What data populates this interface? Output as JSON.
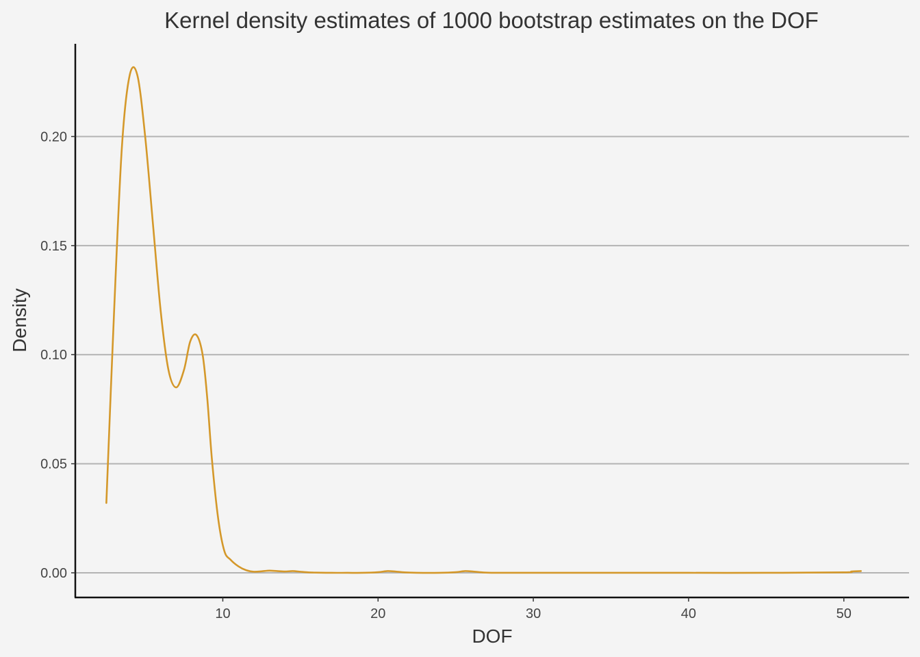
{
  "chart_data": {
    "type": "line",
    "title": "Kernel density estimates of 1000 bootstrap estimates on the DOF",
    "xlabel": "DOF",
    "ylabel": "Density",
    "xlim": [
      0.5,
      54.2
    ],
    "ylim": [
      -0.0113,
      0.2425
    ],
    "x_ticks": [
      10,
      20,
      30,
      40,
      50
    ],
    "x_tick_labels": [
      "10",
      "20",
      "30",
      "40",
      "50"
    ],
    "y_ticks": [
      0.0,
      0.05,
      0.1,
      0.15,
      0.2
    ],
    "y_tick_labels": [
      "0.00",
      "0.05",
      "0.10",
      "0.15",
      "0.20"
    ],
    "grid": "horizontal major",
    "line_color": "#d4982a",
    "series": [
      {
        "x": [
          2.5,
          3.0,
          3.5,
          4.0,
          4.5,
          5.0,
          5.5,
          6.0,
          6.5,
          7.0,
          7.5,
          7.9,
          8.3,
          8.7,
          9.0,
          9.3,
          9.7,
          10.1,
          10.5,
          11.0,
          11.5,
          12.0,
          12.5,
          13.0,
          13.5,
          14.0,
          14.5,
          15.0,
          15.5,
          16.0,
          17.0,
          18.0,
          19.0,
          20.0,
          20.6,
          21.1,
          21.7,
          22.5,
          24.0,
          25.0,
          25.6,
          26.1,
          26.7,
          27.5,
          30.0,
          35.0,
          40.0,
          45.0,
          50.0,
          50.5,
          51.1
        ],
        "y": [
          0.032,
          0.12,
          0.195,
          0.228,
          0.228,
          0.2,
          0.16,
          0.12,
          0.093,
          0.085,
          0.093,
          0.106,
          0.109,
          0.1,
          0.08,
          0.052,
          0.025,
          0.01,
          0.006,
          0.003,
          0.0012,
          0.0005,
          0.0007,
          0.001,
          0.0008,
          0.0006,
          0.0008,
          0.0005,
          0.0002,
          0.0001,
          0.0,
          0.0,
          0.0,
          0.0003,
          0.0008,
          0.0006,
          0.0002,
          0.0,
          0.0,
          0.0003,
          0.0008,
          0.0006,
          0.0002,
          0.0,
          0.0,
          0.0,
          0.0,
          0.0,
          0.0002,
          0.0006,
          0.0008
        ]
      }
    ]
  }
}
